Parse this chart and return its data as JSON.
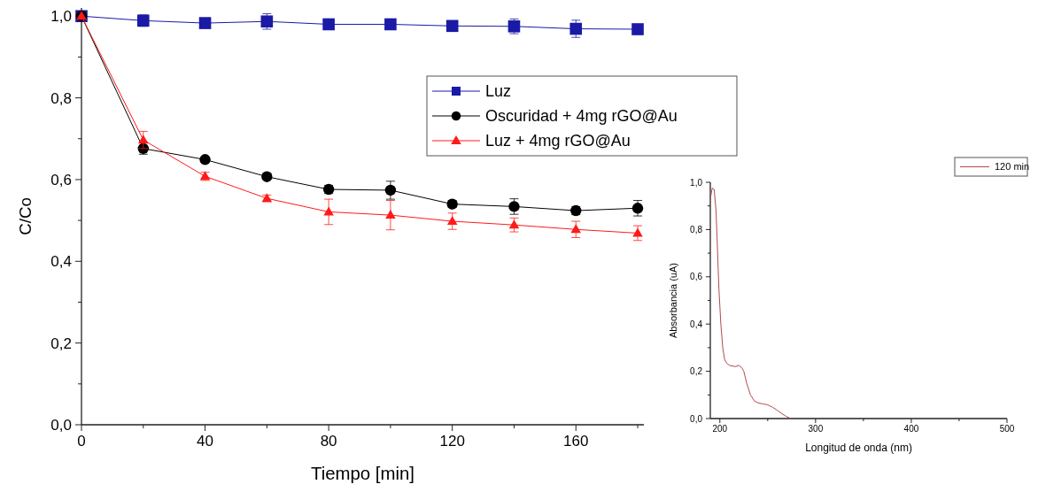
{
  "chart_data": [
    {
      "type": "line",
      "xlabel": "Tiempo [min]",
      "ylabel": "C/Co",
      "x": [
        0,
        20,
        40,
        60,
        80,
        100,
        120,
        140,
        160,
        180
      ],
      "xlim": [
        0,
        182
      ],
      "ylim": [
        0,
        1.02
      ],
      "xticks": [
        0,
        {
          "value": 20,
          "label": null
        },
        40,
        {
          "value": 60,
          "label": null
        },
        80,
        {
          "value": 100,
          "label": null
        },
        120,
        {
          "value": 140,
          "label": null
        },
        160,
        {
          "value": 180,
          "label": null
        }
      ],
      "yticks": [
        {
          "value": 0,
          "label": "0,0"
        },
        {
          "value": 0.1,
          "label": null
        },
        {
          "value": 0.2,
          "label": "0,2"
        },
        {
          "value": 0.3,
          "label": null
        },
        {
          "value": 0.4,
          "label": "0,4"
        },
        {
          "value": 0.5,
          "label": null
        },
        {
          "value": 0.6,
          "label": "0,6"
        },
        {
          "value": 0.7,
          "label": null
        },
        {
          "value": 0.8,
          "label": "0,8"
        },
        {
          "value": 0.9,
          "label": null
        },
        {
          "value": 1.0,
          "label": "1,0"
        }
      ],
      "legend": "right",
      "grid": false,
      "series": [
        {
          "name": "Luz",
          "color": "#1a1aa6",
          "marker": "square",
          "values": [
            1.0,
            0.989,
            0.983,
            0.987,
            0.98,
            0.98,
            0.976,
            0.975,
            0.969,
            0.968
          ],
          "errors": [
            null,
            0.014,
            0.003,
            0.019,
            0.01,
            0.005,
            0.01,
            0.018,
            0.021,
            0.003
          ]
        },
        {
          "name": "Oscuridad + 4mg rGO@Au",
          "color": "#000000",
          "marker": "circle",
          "values": [
            1.0,
            0.676,
            0.649,
            0.607,
            0.576,
            0.574,
            0.54,
            0.534,
            0.524,
            0.53
          ],
          "errors": [
            null,
            0.014,
            0.004,
            0.005,
            0.01,
            0.022,
            0.008,
            0.019,
            0.01,
            0.019
          ]
        },
        {
          "name": "Luz + 4mg rGO@Au",
          "color": "#ff1a1a",
          "marker": "triangle",
          "values": [
            1.0,
            0.697,
            0.608,
            0.554,
            0.521,
            0.513,
            0.498,
            0.489,
            0.478,
            0.469
          ],
          "errors": [
            null,
            0.021,
            0.01,
            0.008,
            0.031,
            0.036,
            0.02,
            0.017,
            0.02,
            0.018
          ]
        }
      ]
    },
    {
      "type": "line",
      "xlabel": "Longitud de onda (nm)",
      "ylabel": "Absorbancia (uA)",
      "xlim": [
        190,
        500
      ],
      "ylim": [
        0,
        1.0
      ],
      "xticks": [
        200,
        {
          "value": 250,
          "label": null
        },
        300,
        {
          "value": 350,
          "label": null
        },
        400,
        {
          "value": 450,
          "label": null
        },
        500
      ],
      "yticks": [
        {
          "value": 0,
          "label": "0,0"
        },
        {
          "value": 0.1,
          "label": null
        },
        {
          "value": 0.2,
          "label": "0,2"
        },
        {
          "value": 0.3,
          "label": null
        },
        {
          "value": 0.4,
          "label": "0,4"
        },
        {
          "value": 0.5,
          "label": null
        },
        {
          "value": 0.6,
          "label": "0,6"
        },
        {
          "value": 0.7,
          "label": null
        },
        {
          "value": 0.8,
          "label": "0,8"
        },
        {
          "value": 0.9,
          "label": null
        },
        {
          "value": 1.0,
          "label": "1,0"
        }
      ],
      "legend": "top right",
      "grid": false,
      "series": [
        {
          "name": "120 min",
          "color": "#b04a4a",
          "marker": "none",
          "x": [
            190,
            192,
            194,
            196,
            197,
            199,
            201,
            203,
            205,
            207,
            210,
            216,
            220,
            223,
            225,
            228,
            232,
            236,
            240,
            245,
            250,
            255,
            260,
            265,
            269,
            274
          ],
          "values": [
            0.93,
            0.975,
            0.97,
            0.88,
            0.77,
            0.55,
            0.4,
            0.3,
            0.25,
            0.235,
            0.225,
            0.22,
            0.225,
            0.215,
            0.2,
            0.15,
            0.1,
            0.075,
            0.066,
            0.062,
            0.058,
            0.048,
            0.035,
            0.02,
            0.01,
            0.0
          ]
        }
      ]
    }
  ]
}
